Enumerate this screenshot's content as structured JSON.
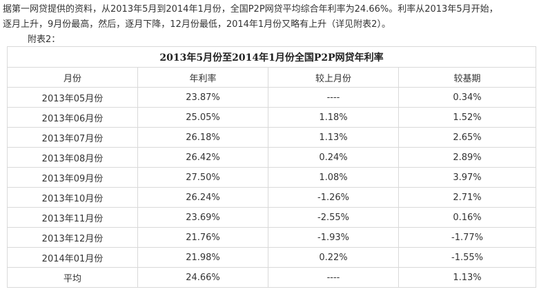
{
  "intro": {
    "line1": "据第一网贷提供的资料，从2013年5月到2014年1月份，全国P2P网贷平均综合年利率为24.66%。利率从2013年5月开始，",
    "line2": "逐月上升，9月份最高，然后，逐月下降，12月份最低，2014年1月份又略有上升（详见附表2）。",
    "note": "附表2："
  },
  "table": {
    "title": "2013年5月份至2014年1月份全国P2P网贷年利率",
    "headers": [
      "月份",
      "年利率",
      "较上月份",
      "较基期"
    ],
    "rows": [
      [
        "2013年05月份",
        "23.87%",
        "----",
        "0.34%"
      ],
      [
        "2013年06月份",
        "25.05%",
        "1.18%",
        "1.52%"
      ],
      [
        "2013年07月份",
        "26.18%",
        "1.13%",
        "2.65%"
      ],
      [
        "2013年08月份",
        "26.42%",
        "0.24%",
        "2.89%"
      ],
      [
        "2013年09月份",
        "27.50%",
        "1.08%",
        "3.97%"
      ],
      [
        "2013年10月份",
        "26.24%",
        "-1.26%",
        "2.71%"
      ],
      [
        "2013年11月份",
        "23.69%",
        "-2.55%",
        "0.16%"
      ],
      [
        "2013年12月份",
        "21.76%",
        "-1.93%",
        "-1.77%"
      ],
      [
        "2014年01月份",
        "21.98%",
        "0.22%",
        "-1.55%"
      ],
      [
        "平均",
        "24.66%",
        "----",
        "1.13%"
      ]
    ]
  }
}
